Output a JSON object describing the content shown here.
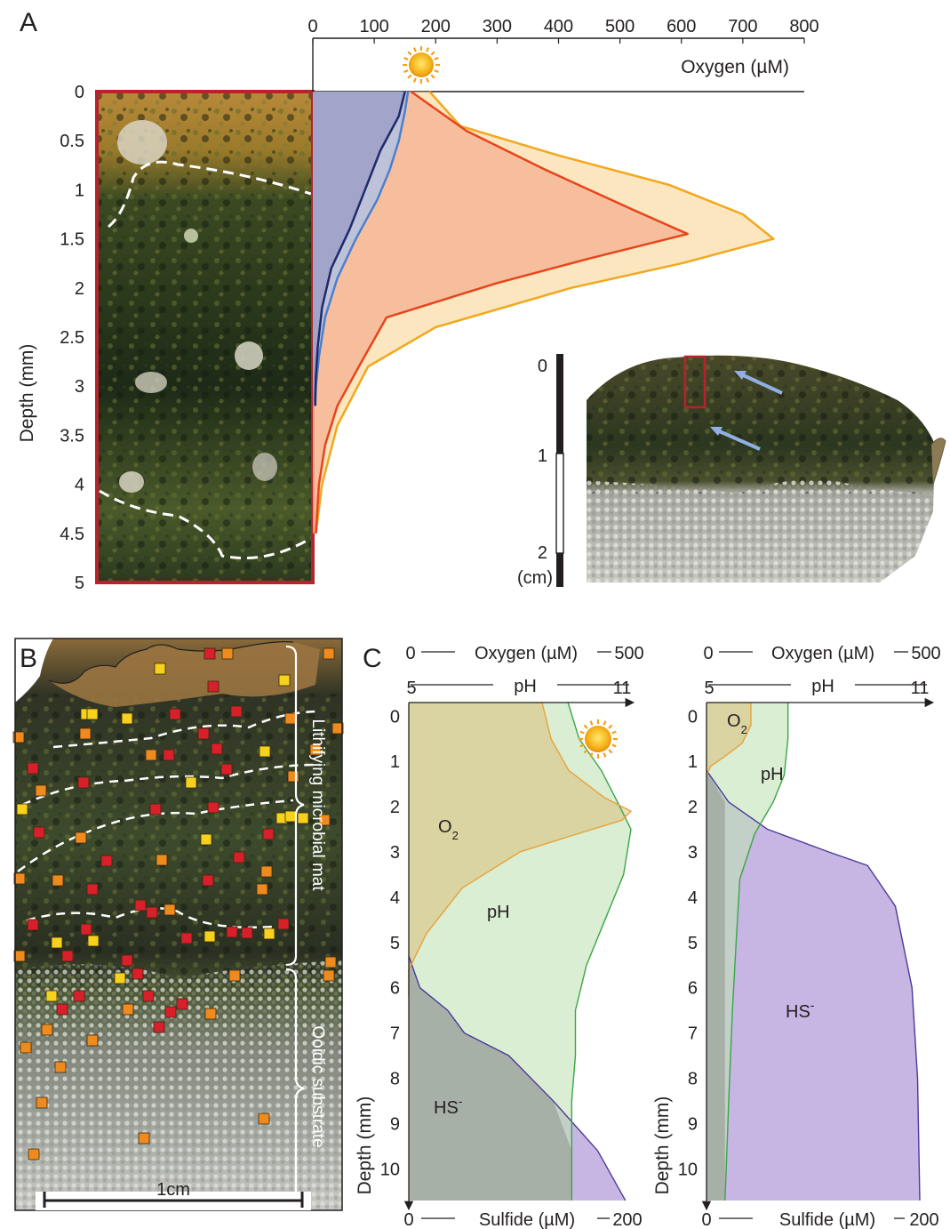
{
  "panels": {
    "a": "A",
    "b": "B",
    "c": "C"
  },
  "panel_a": {
    "x_ticks": [
      "0",
      "100",
      "200",
      "300",
      "400",
      "500",
      "600",
      "700",
      "800"
    ],
    "y_ticks": [
      "0",
      "0.5",
      "1",
      "1.5",
      "2",
      "2.5",
      "3",
      "3.5",
      "4",
      "4.5",
      "5"
    ],
    "x_title": "Oxygen (µM)",
    "y_title": "Depth (mm)",
    "scale_ticks": [
      "0",
      "1",
      "2"
    ],
    "scale_unit": "(cm)"
  },
  "panel_b": {
    "label_top": "Lithifying microbial mat",
    "label_bottom": "Ooidic substrate",
    "scale_bar": "1cm"
  },
  "panel_c": {
    "top_axis_left": "0",
    "top_axis_title": "Oxygen (µM)",
    "top_axis_right": "500",
    "ph_left": "5",
    "ph_title": "pH",
    "ph_right": "11",
    "bottom_axis_left": "0",
    "bottom_axis_title": "Sulfide (µM)",
    "bottom_axis_right": "200",
    "y_title": "Depth (mm)",
    "y_ticks": [
      "0",
      "1",
      "2",
      "3",
      "4",
      "5",
      "6",
      "7",
      "8",
      "9",
      "10"
    ],
    "day_labels": {
      "o2": "O",
      "o2_sub": "2",
      "ph": "pH",
      "hs": "HS",
      "hs_sup": "-"
    },
    "night_labels": {
      "o2": "O",
      "o2_sub": "2",
      "ph": "pH",
      "hs": "HS",
      "hs_sup": "-"
    }
  },
  "colors": {
    "night_dark": "#1f2a6b",
    "night_light": "#4a7fd0",
    "day_red": "#e8441c",
    "day_orange": "#f2a81d",
    "o2_line": "#e9a23b",
    "ph_line": "#3aa64a",
    "hs_line": "#4b3a9a",
    "photo_frame": "#b8222a",
    "square_red": "#d81f2a",
    "square_orange": "#ef8a1e",
    "square_yellow": "#f6d21c"
  },
  "chart_data": [
    {
      "type": "area",
      "panel": "A",
      "xlabel": "Oxygen (µM)",
      "ylabel": "Depth (mm)",
      "xlim": [
        0,
        800
      ],
      "ylim": [
        5,
        0
      ],
      "series": [
        {
          "x": [
            150,
            140,
            110,
            85,
            60,
            30,
            15,
            8,
            5,
            4,
            4
          ],
          "y": [
            0,
            0.25,
            0.6,
            1.0,
            1.4,
            1.8,
            2.2,
            2.6,
            2.9,
            3.1,
            3.2
          ]
        },
        {
          "x": [
            155,
            150,
            140,
            125,
            105,
            70,
            40,
            20,
            10,
            5,
            4
          ],
          "y": [
            0,
            0.2,
            0.5,
            0.8,
            1.1,
            1.5,
            1.9,
            2.3,
            2.7,
            3.0,
            3.2
          ]
        },
        {
          "x": [
            160,
            250,
            380,
            520,
            610,
            450,
            300,
            120,
            75,
            40,
            20,
            10,
            5
          ],
          "y": [
            0,
            0.4,
            0.8,
            1.2,
            1.45,
            1.7,
            1.95,
            2.3,
            2.8,
            3.2,
            3.6,
            4.0,
            4.5
          ]
        },
        {
          "x": [
            190,
            240,
            400,
            580,
            700,
            750,
            600,
            420,
            200,
            90,
            40,
            15,
            5
          ],
          "y": [
            0,
            0.35,
            0.65,
            0.95,
            1.25,
            1.5,
            1.75,
            2.0,
            2.4,
            2.8,
            3.4,
            4.0,
            4.5
          ]
        }
      ]
    },
    {
      "type": "area",
      "panel": "C-day",
      "ylabel": "Depth (mm)",
      "ylim": [
        10.8,
        -0.3
      ],
      "oxygen_xlim": [
        0,
        500
      ],
      "ph_xlim": [
        5,
        11
      ],
      "sulfide_xlim": [
        0,
        200
      ],
      "series": [
        {
          "x": [
            300,
            320,
            360,
            440,
            500,
            480,
            380,
            250,
            120,
            40,
            0,
            0
          ],
          "y": [
            -0.3,
            0.5,
            1.2,
            1.8,
            2.1,
            2.3,
            2.6,
            3.0,
            3.8,
            4.8,
            5.6,
            6.2
          ]
        },
        {
          "x": [
            9.3,
            9.6,
            10.2,
            10.7,
            11.0,
            10.8,
            10.3,
            9.8,
            9.5,
            9.5,
            9.4,
            9.4
          ],
          "y": [
            -0.3,
            0.5,
            1.2,
            2.0,
            2.5,
            3.5,
            4.5,
            5.5,
            6.5,
            7.5,
            8.5,
            10.7
          ]
        },
        {
          "x": [
            0,
            10,
            35,
            50,
            90,
            130,
            170,
            195
          ],
          "y": [
            5.3,
            6.0,
            6.5,
            7.0,
            7.5,
            8.5,
            9.6,
            10.7
          ]
        }
      ]
    },
    {
      "type": "area",
      "panel": "C-night",
      "ylabel": "Depth (mm)",
      "ylim": [
        10.8,
        -0.3
      ],
      "oxygen_xlim": [
        0,
        500
      ],
      "ph_xlim": [
        5,
        11
      ],
      "sulfide_xlim": [
        0,
        200
      ],
      "series": [
        {
          "x": [
            100,
            100,
            80,
            40,
            10,
            0
          ],
          "y": [
            -0.3,
            0.2,
            0.6,
            0.9,
            1.1,
            1.3
          ]
        },
        {
          "x": [
            7.2,
            7.2,
            7.1,
            6.8,
            6.3,
            5.9,
            5.8,
            5.7,
            5.6,
            5.5
          ],
          "y": [
            -0.3,
            0.5,
            1.3,
            1.9,
            2.6,
            3.6,
            5.0,
            6.5,
            8.5,
            10.7
          ]
        },
        {
          "x": [
            0,
            20,
            55,
            110,
            145,
            170,
            185,
            190,
            192
          ],
          "y": [
            1.2,
            1.9,
            2.5,
            3.0,
            3.3,
            4.2,
            6.0,
            8.0,
            10.7
          ]
        }
      ]
    }
  ]
}
